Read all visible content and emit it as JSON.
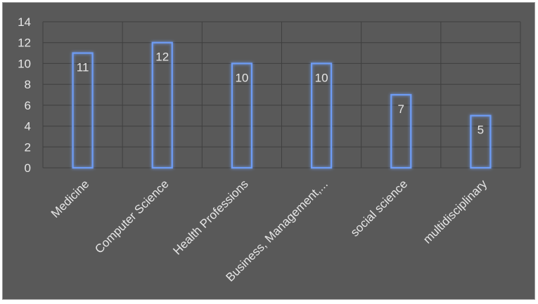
{
  "chart_data": {
    "type": "bar",
    "categories": [
      "Medicine",
      "Computer Science",
      "Health Professions",
      "Business, Management,...",
      "social science",
      "multidisciplinary"
    ],
    "values": [
      11,
      12,
      10,
      10,
      7,
      5
    ],
    "data_labels": [
      "11",
      "12",
      "10",
      "10",
      "7",
      "5"
    ],
    "ylim": [
      0,
      14
    ],
    "yticks": [
      0,
      2,
      4,
      6,
      8,
      10,
      12,
      14
    ],
    "grid": true,
    "legend": "none",
    "colors": {
      "background": "#595959",
      "bar_stroke": "#4472c4",
      "bar_glow": "#6e9cf5",
      "grid": "#3f3f3f",
      "text": "#e6e6e6"
    }
  }
}
